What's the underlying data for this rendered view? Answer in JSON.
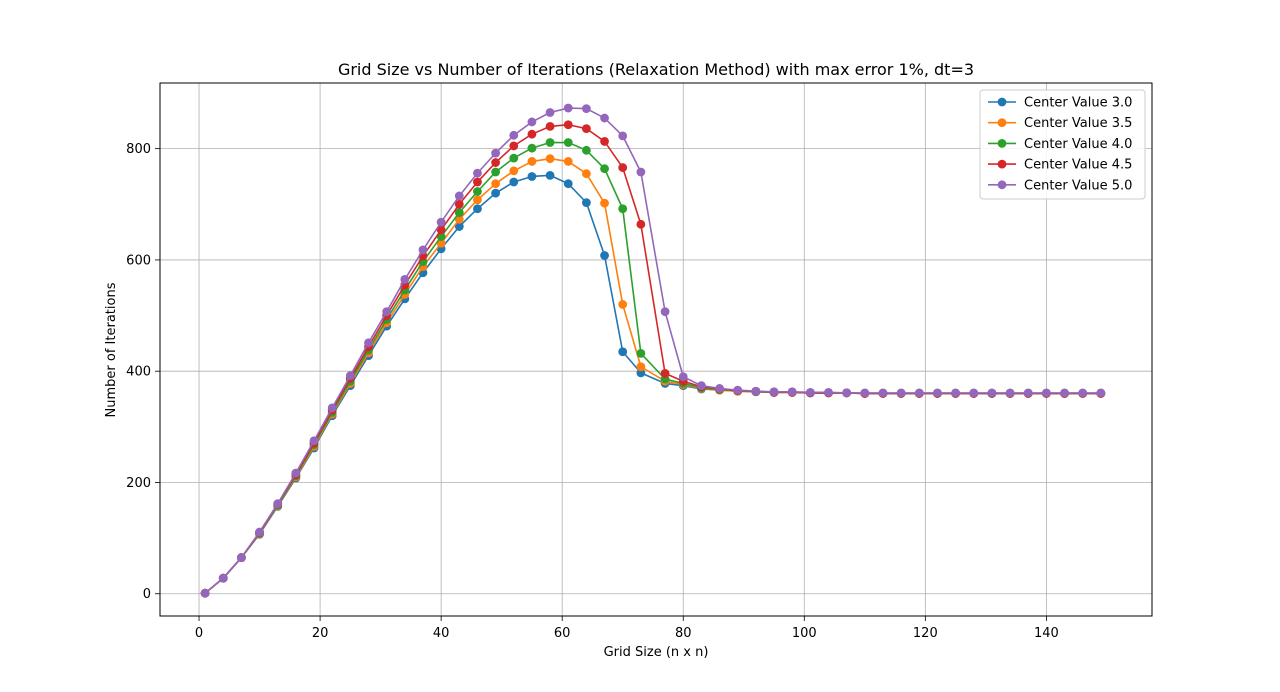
{
  "chart_data": {
    "type": "line",
    "title": "Grid Size vs Number of Iterations (Relaxation Method) with max error 1%, dt=3",
    "xlabel": "Grid Size (n x n)",
    "ylabel": "Number of Iterations",
    "xlim": [
      -6.45,
      157.45
    ],
    "ylim": [
      -40,
      918
    ],
    "xticks": [
      0,
      20,
      40,
      60,
      80,
      100,
      120,
      140
    ],
    "yticks": [
      0,
      200,
      400,
      600,
      800
    ],
    "xtick_labels": [
      "0",
      "20",
      "40",
      "60",
      "80",
      "100",
      "120",
      "140"
    ],
    "ytick_labels": [
      "0",
      "200",
      "400",
      "600",
      "800"
    ],
    "grid": true,
    "legend_position": "top-right",
    "x": [
      1,
      4,
      7,
      10,
      13,
      16,
      19,
      22,
      25,
      28,
      31,
      34,
      37,
      40,
      43,
      46,
      49,
      52,
      55,
      58,
      61,
      64,
      67,
      70,
      73,
      77,
      80,
      83,
      86,
      89,
      92,
      95,
      98,
      101,
      104,
      107,
      110,
      113,
      116,
      119,
      122,
      125,
      128,
      131,
      134,
      137,
      140,
      143,
      146,
      149
    ],
    "series": [
      {
        "name": "Center Value 3.0",
        "color": "#1f77b4",
        "values": [
          1,
          28,
          65,
          107,
          157,
          208,
          262,
          320,
          374,
          428,
          481,
          530,
          577,
          620,
          660,
          692,
          720,
          740,
          750,
          752,
          737,
          703,
          608,
          435,
          397,
          378,
          374,
          368,
          366,
          364,
          363,
          362,
          362,
          361,
          361,
          361,
          360,
          360,
          360,
          360,
          360,
          360,
          360,
          360,
          360,
          360,
          360,
          360,
          360,
          360
        ]
      },
      {
        "name": "Center Value 3.5",
        "color": "#ff7f0e",
        "values": [
          1,
          28,
          65,
          108,
          158,
          210,
          265,
          323,
          378,
          433,
          487,
          538,
          588,
          630,
          673,
          708,
          737,
          760,
          777,
          782,
          777,
          755,
          702,
          520,
          408,
          382,
          376,
          369,
          366,
          364,
          363,
          362,
          362,
          361,
          361,
          361,
          360,
          360,
          360,
          360,
          360,
          360,
          360,
          360,
          360,
          360,
          360,
          360,
          360,
          360
        ]
      },
      {
        "name": "Center Value 4.0",
        "color": "#2ca02c",
        "values": [
          1,
          28,
          65,
          109,
          159,
          212,
          268,
          326,
          382,
          438,
          493,
          546,
          597,
          642,
          685,
          723,
          758,
          783,
          801,
          811,
          811,
          797,
          764,
          692,
          432,
          386,
          378,
          370,
          367,
          365,
          363,
          362,
          362,
          361,
          361,
          361,
          360,
          360,
          360,
          360,
          360,
          360,
          360,
          360,
          360,
          360,
          360,
          360,
          360,
          360
        ]
      },
      {
        "name": "Center Value 4.5",
        "color": "#d62728",
        "values": [
          1,
          28,
          65,
          110,
          161,
          214,
          271,
          330,
          387,
          444,
          500,
          555,
          607,
          654,
          700,
          740,
          775,
          805,
          826,
          840,
          843,
          836,
          813,
          766,
          664,
          396,
          382,
          372,
          368,
          365,
          364,
          362,
          362,
          361,
          361,
          361,
          360,
          360,
          360,
          360,
          360,
          360,
          360,
          360,
          360,
          360,
          360,
          360,
          360,
          360
        ]
      },
      {
        "name": "Center Value 5.0",
        "color": "#9467bd",
        "values": [
          1,
          28,
          65,
          111,
          162,
          217,
          275,
          334,
          392,
          451,
          507,
          565,
          618,
          668,
          715,
          756,
          792,
          824,
          848,
          865,
          873,
          872,
          855,
          823,
          758,
          507,
          390,
          374,
          369,
          366,
          364,
          363,
          363,
          362,
          362,
          361,
          361,
          361,
          361,
          361,
          361,
          361,
          361,
          361,
          361,
          361,
          361,
          361,
          361,
          361
        ]
      }
    ]
  }
}
